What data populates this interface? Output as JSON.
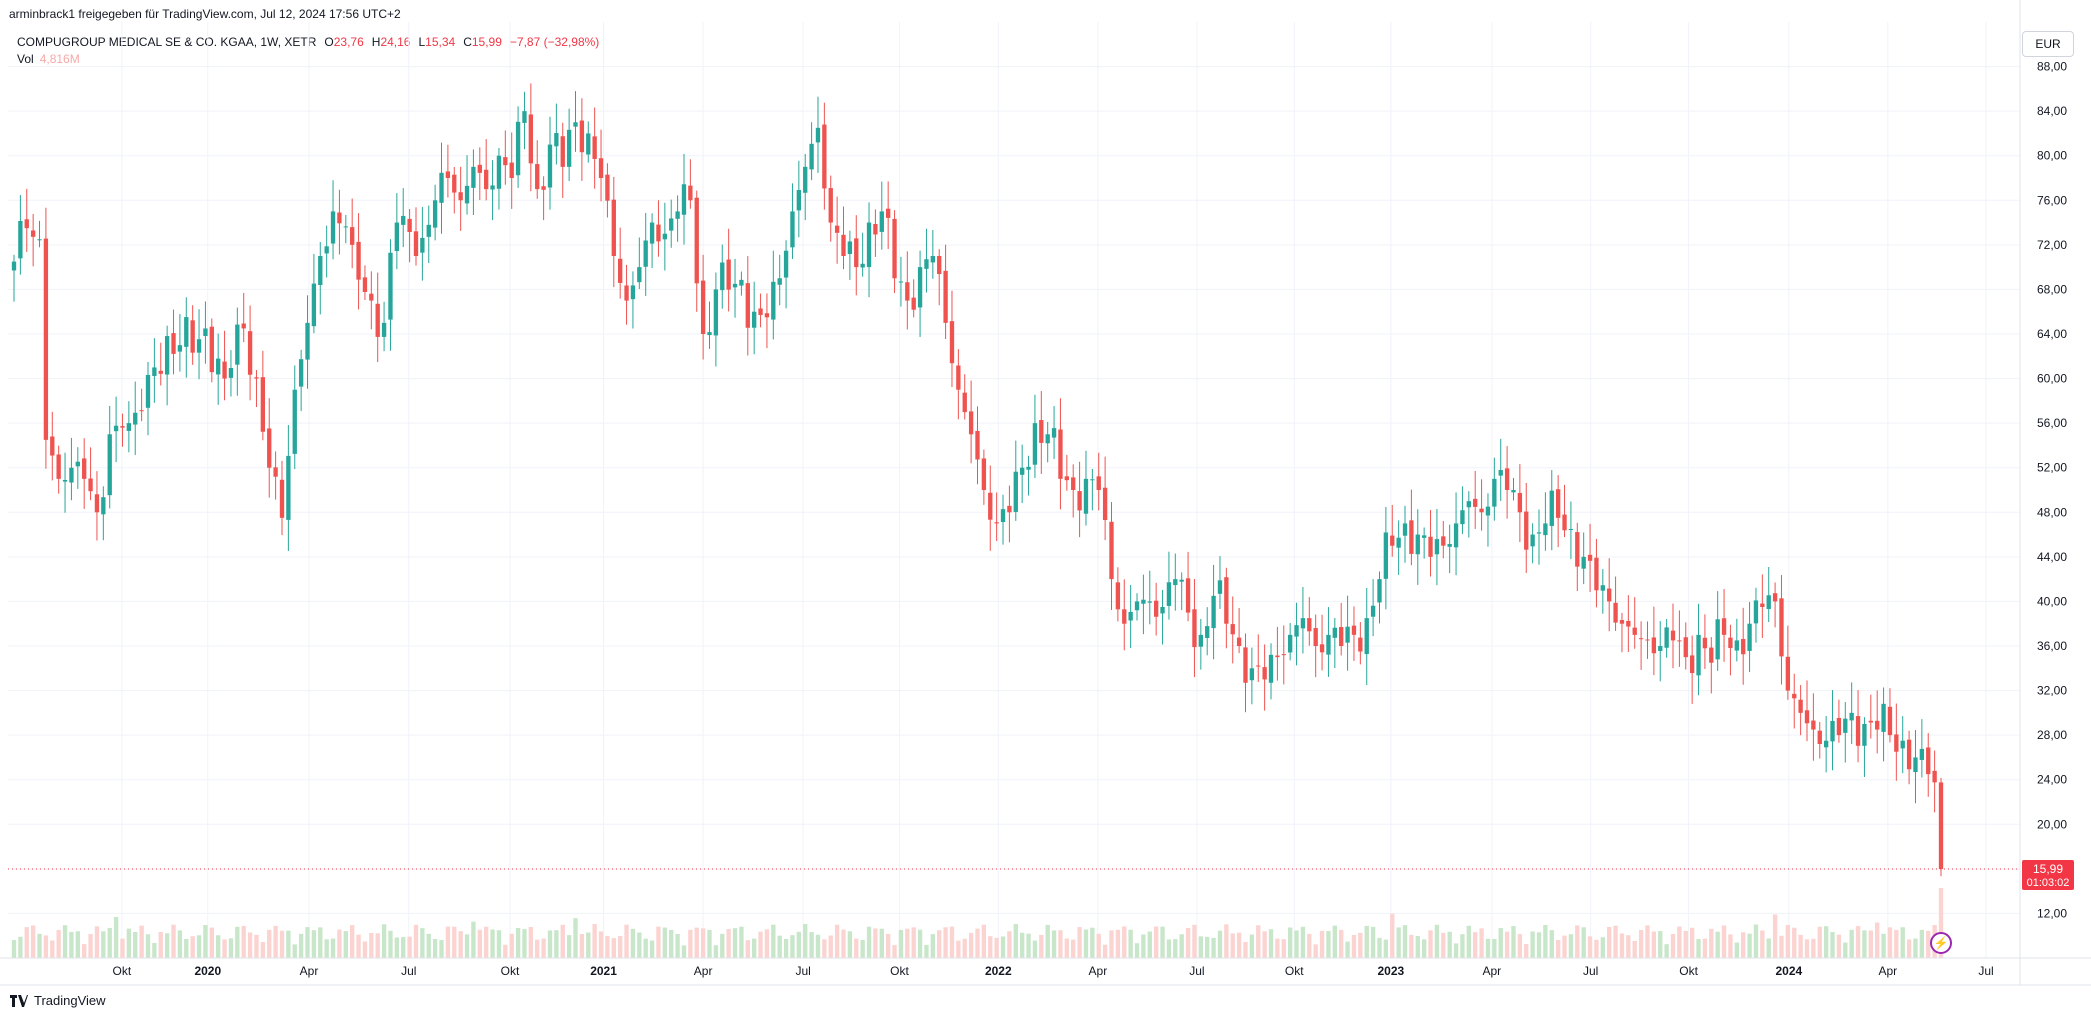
{
  "header": {
    "attribution": "arminbrack1 freigegeben für TradingView.com, Jul 12, 2024 17:56 UTC+2",
    "symbol": "COMPUGROUP MEDICAL SE & CO. KGAA, 1W, XETR",
    "open_label": "O",
    "open": "23,76",
    "high_label": "H",
    "high": "24,16",
    "low_label": "L",
    "low": "15,34",
    "close_label": "C",
    "close": "15,99",
    "change": "−7,87 (−32,98%)",
    "vol_label": "Vol",
    "vol_value": "4,816M",
    "currency": "EUR"
  },
  "price_badge": {
    "price": "15,99",
    "countdown": "01:03:02"
  },
  "footer": {
    "brand": "TradingView"
  },
  "colors": {
    "up": "#26a69a",
    "down": "#ef5350",
    "vol_up": "#c8e6c9",
    "vol_down": "#fbd3d1",
    "price_line": "#f23645"
  },
  "chart_data": {
    "type": "candlestick",
    "interval": "1W",
    "currency": "EUR",
    "ylim": [
      8,
      92
    ],
    "y_ticks": [
      "12,00",
      "16,00",
      "20,00",
      "24,00",
      "28,00",
      "32,00",
      "36,00",
      "40,00",
      "44,00",
      "48,00",
      "52,00",
      "56,00",
      "60,00",
      "64,00",
      "68,00",
      "72,00",
      "76,00",
      "80,00",
      "84,00",
      "88,00"
    ],
    "x_ticks": [
      {
        "t": 0.0566,
        "label": "Okt"
      },
      {
        "t": 0.0993,
        "label": "2020"
      },
      {
        "t": 0.1496,
        "label": "Apr"
      },
      {
        "t": 0.1992,
        "label": "Jul"
      },
      {
        "t": 0.2495,
        "label": "Okt"
      },
      {
        "t": 0.296,
        "label": "2021"
      },
      {
        "t": 0.3455,
        "label": "Apr"
      },
      {
        "t": 0.3952,
        "label": "Jul"
      },
      {
        "t": 0.4431,
        "label": "Okt"
      },
      {
        "t": 0.4922,
        "label": "2022"
      },
      {
        "t": 0.5417,
        "label": "Apr"
      },
      {
        "t": 0.5909,
        "label": "Jul"
      },
      {
        "t": 0.6393,
        "label": "Okt"
      },
      {
        "t": 0.6873,
        "label": "2023"
      },
      {
        "t": 0.7375,
        "label": "Apr"
      },
      {
        "t": 0.7866,
        "label": "Jul"
      },
      {
        "t": 0.8353,
        "label": "Okt"
      },
      {
        "t": 0.8851,
        "label": "2024"
      },
      {
        "t": 0.9343,
        "label": "Apr"
      },
      {
        "t": 0.9831,
        "label": "Jul"
      }
    ],
    "last_price": 15.99,
    "anchors": [
      [
        0,
        70.5
      ],
      [
        2,
        73.5
      ],
      [
        4,
        72.5
      ],
      [
        5,
        54.5
      ],
      [
        7,
        51
      ],
      [
        9,
        52
      ],
      [
        11,
        51
      ],
      [
        13,
        48
      ],
      [
        15,
        55
      ],
      [
        18,
        56
      ],
      [
        22,
        61
      ],
      [
        26,
        63
      ],
      [
        30,
        64.5
      ],
      [
        33,
        60
      ],
      [
        36,
        64.5
      ],
      [
        38,
        60
      ],
      [
        40,
        52
      ],
      [
        42,
        47.5
      ],
      [
        44,
        59
      ],
      [
        46,
        65
      ],
      [
        48,
        71
      ],
      [
        50,
        75
      ],
      [
        53,
        72
      ],
      [
        56,
        67
      ],
      [
        58,
        65
      ],
      [
        60,
        74
      ],
      [
        63,
        71
      ],
      [
        66,
        76
      ],
      [
        68,
        78
      ],
      [
        70,
        76
      ],
      [
        72,
        79
      ],
      [
        74,
        77
      ],
      [
        76,
        80
      ],
      [
        78,
        78
      ],
      [
        80,
        84
      ],
      [
        82,
        77
      ],
      [
        84,
        81
      ],
      [
        86,
        79
      ],
      [
        88,
        83
      ],
      [
        90,
        82
      ],
      [
        92,
        78
      ],
      [
        94,
        71
      ],
      [
        96,
        67
      ],
      [
        98,
        70
      ],
      [
        100,
        74
      ],
      [
        102,
        73
      ],
      [
        104,
        75
      ],
      [
        106,
        76
      ],
      [
        108,
        64
      ],
      [
        110,
        68
      ],
      [
        113,
        68.5
      ],
      [
        116,
        66
      ],
      [
        118,
        65.5
      ],
      [
        120,
        69
      ],
      [
        122,
        75
      ],
      [
        124,
        79
      ],
      [
        126,
        82.5
      ],
      [
        128,
        74
      ],
      [
        130,
        71
      ],
      [
        132,
        70
      ],
      [
        134,
        74
      ],
      [
        136,
        75
      ],
      [
        138,
        69
      ],
      [
        140,
        67
      ],
      [
        142,
        70
      ],
      [
        144,
        71
      ],
      [
        146,
        65
      ],
      [
        148,
        59
      ],
      [
        150,
        55
      ],
      [
        152,
        50
      ],
      [
        154,
        47
      ],
      [
        156,
        48
      ],
      [
        158,
        52
      ],
      [
        160,
        56
      ],
      [
        162,
        55
      ],
      [
        164,
        51
      ],
      [
        166,
        50
      ],
      [
        168,
        51
      ],
      [
        170,
        50
      ],
      [
        172,
        42
      ],
      [
        174,
        38
      ],
      [
        176,
        40
      ],
      [
        178,
        40
      ],
      [
        180,
        39.5
      ],
      [
        182,
        42
      ],
      [
        184,
        39
      ],
      [
        186,
        37
      ],
      [
        188,
        40.5
      ],
      [
        190,
        38
      ],
      [
        192,
        36
      ],
      [
        194,
        34
      ],
      [
        196,
        33
      ],
      [
        198,
        35
      ],
      [
        200,
        37
      ],
      [
        202,
        38.5
      ],
      [
        204,
        36
      ],
      [
        206,
        37
      ],
      [
        208,
        36
      ],
      [
        210,
        37
      ],
      [
        212,
        38.5
      ],
      [
        214,
        42
      ],
      [
        216,
        45
      ],
      [
        218,
        47
      ],
      [
        220,
        46
      ],
      [
        222,
        44
      ],
      [
        224,
        45
      ],
      [
        226,
        47
      ],
      [
        228,
        49
      ],
      [
        230,
        48
      ],
      [
        232,
        51
      ],
      [
        234,
        50
      ],
      [
        236,
        48
      ],
      [
        238,
        46
      ],
      [
        240,
        47
      ],
      [
        242,
        47.5
      ],
      [
        244,
        46.5
      ],
      [
        246,
        44
      ],
      [
        248,
        41
      ],
      [
        250,
        40
      ],
      [
        252,
        38
      ],
      [
        254,
        37
      ],
      [
        256,
        36.5
      ],
      [
        258,
        36
      ],
      [
        260,
        36.5
      ],
      [
        262,
        35
      ],
      [
        264,
        37
      ],
      [
        266,
        34.5
      ],
      [
        268,
        37
      ],
      [
        270,
        36.5
      ],
      [
        272,
        38
      ],
      [
        274,
        39.5
      ],
      [
        276,
        40
      ],
      [
        278,
        32
      ],
      [
        280,
        30
      ],
      [
        282,
        28.5
      ],
      [
        284,
        27.5
      ],
      [
        286,
        28
      ],
      [
        288,
        30
      ],
      [
        290,
        29
      ],
      [
        292,
        28.5
      ],
      [
        294,
        28
      ],
      [
        296,
        27.5
      ],
      [
        298,
        26
      ],
      [
        300,
        24.5
      ],
      [
        301,
        23.76
      ],
      [
        302,
        15.99
      ]
    ]
  }
}
